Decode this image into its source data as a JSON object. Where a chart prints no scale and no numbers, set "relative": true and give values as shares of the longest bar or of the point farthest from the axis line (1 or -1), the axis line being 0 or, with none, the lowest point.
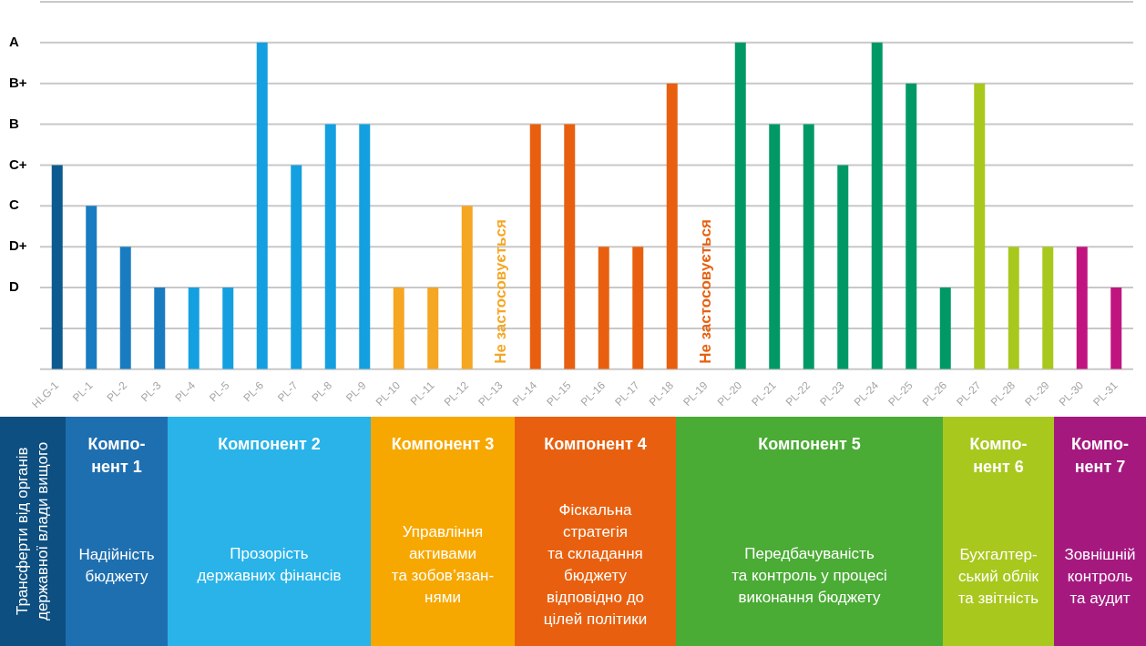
{
  "chart_data": {
    "type": "bar",
    "relative": true,
    "categories": [
      "HLG-1",
      "PL-1",
      "PL-2",
      "PL-3",
      "PL-4",
      "PL-5",
      "PL-6",
      "PL-7",
      "PL-8",
      "PL-9",
      "PL-10",
      "PL-11",
      "PL-12",
      "PL-13",
      "PL-14",
      "PL-15",
      "PL-16",
      "PL-17",
      "PL-18",
      "PL-19",
      "PL-20",
      "PL-21",
      "PL-22",
      "PL-23",
      "PL-24",
      "PL-25",
      "PL-26",
      "PL-27",
      "PL-28",
      "PL-29",
      "PL-30",
      "PL-31"
    ],
    "values": [
      0.625,
      0.5,
      0.375,
      0.25,
      0.25,
      0.25,
      1,
      0.625,
      0.75,
      0.75,
      0.25,
      0.25,
      0.5,
      null,
      0.75,
      0.75,
      0.375,
      0.375,
      0.875,
      null,
      1,
      0.75,
      0.75,
      0.625,
      1,
      0.875,
      0.25,
      0.875,
      0.375,
      0.375,
      0.375,
      0.25
    ],
    "colors": [
      "#0d5a91",
      "#1a7cc0",
      "#1a7cc0",
      "#1a7cc0",
      "#14a0e0",
      "#14a0e0",
      "#14a0e0",
      "#14a0e0",
      "#14a0e0",
      "#14a0e0",
      "#f5a623",
      "#f5a623",
      "#f5a623",
      "#f5a623",
      "#e8600f",
      "#e8600f",
      "#e8600f",
      "#e8600f",
      "#e8600f",
      "#e8600f",
      "#009966",
      "#009966",
      "#009966",
      "#009966",
      "#009966",
      "#009966",
      "#009966",
      "#a8c81e",
      "#a8c81e",
      "#a8c81e",
      "#c0157f",
      "#c0157f"
    ],
    "ref_lines": [
      {
        "axis": "y",
        "value": 0.125,
        "label": null,
        "color": "#c8c8c8"
      },
      {
        "axis": "y",
        "value": 0.25,
        "label": "D",
        "color": "#c8c8c8"
      },
      {
        "axis": "y",
        "value": 0.375,
        "label": "D+",
        "color": "#c8c8c8"
      },
      {
        "axis": "y",
        "value": 0.5,
        "label": "C",
        "color": "#c8c8c8"
      },
      {
        "axis": "y",
        "value": 0.625,
        "label": "C+",
        "color": "#c8c8c8"
      },
      {
        "axis": "y",
        "value": 0.75,
        "label": "B",
        "color": "#c8c8c8"
      },
      {
        "axis": "y",
        "value": 0.875,
        "label": "B+",
        "color": "#c8c8c8"
      },
      {
        "axis": "y",
        "value": 1,
        "label": "A",
        "color": "#c8c8c8"
      },
      {
        "axis": "y",
        "value": 1.125,
        "label": null,
        "color": "#c8c8c8"
      }
    ],
    "legend": false,
    "annotations": [
      "Не застосовується",
      "Не застосовується",
      "Трансферти від органів\nдержавної влади вищого",
      "Компо-\nнент 1\n\n\nНадійність\nбюджету",
      "Компонент 2\n\n\n\nПрозорість\nдержавних фінансів",
      "Компонент 3\n\n\nУправління\nактивами\nта зобов’язан-\nнями",
      "Компонент 4\n\nФіскальна\nстратегія\nта складання\nбюджету\nвідповідно до\nцілей політики",
      "Компонент 5\n\n\n\nПередбачуваність\nта контроль у процесі\nвиконання бюджету",
      "Компо-\nнент 6\n\n\nБухгалтер-\nський облік\nта звітність",
      "Компо-\nнент 7\n\n\nЗовнішній\nконтроль\nта аудит"
    ]
  }
}
